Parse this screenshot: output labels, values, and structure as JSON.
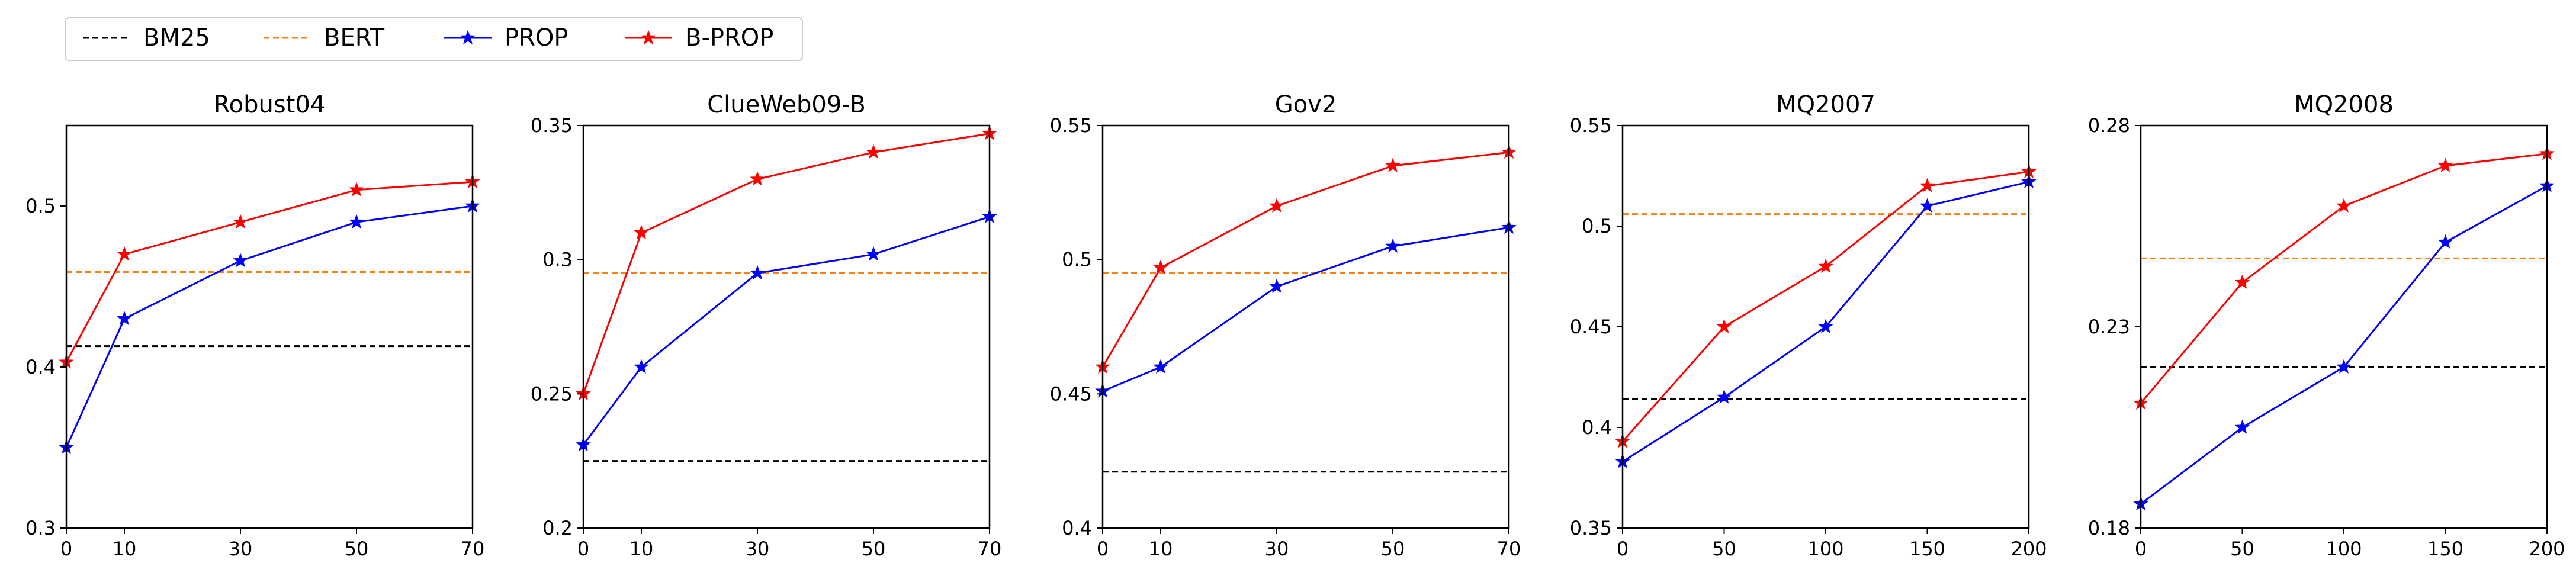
{
  "legend": {
    "placement": "top-left",
    "items": [
      {
        "label": "BM25",
        "color": "#000000",
        "style": "dashed",
        "marker": "none"
      },
      {
        "label": "BERT",
        "color": "#ff7f0e",
        "style": "dashed",
        "marker": "none"
      },
      {
        "label": "PROP",
        "color": "#0000ff",
        "style": "solid",
        "marker": "star"
      },
      {
        "label": "B-PROP",
        "color": "#ff0000",
        "style": "solid",
        "marker": "star"
      }
    ]
  },
  "chart_data": [
    {
      "type": "line",
      "title": "Robust04",
      "x": [
        0,
        10,
        30,
        50,
        70
      ],
      "xticks": [
        "0",
        "10",
        "30",
        "50",
        "70"
      ],
      "xlim": [
        0,
        70
      ],
      "ylim": [
        0.3,
        0.55
      ],
      "yticks": [
        0.3,
        0.4,
        0.5
      ],
      "ytick_labels": [
        "0.3",
        "0.4",
        "0.5"
      ],
      "baselines": [
        {
          "name": "BM25",
          "value": 0.413
        },
        {
          "name": "BERT",
          "value": 0.459
        }
      ],
      "series": [
        {
          "name": "PROP",
          "values": [
            0.35,
            0.43,
            0.466,
            0.49,
            0.5
          ]
        },
        {
          "name": "B-PROP",
          "values": [
            0.403,
            0.47,
            0.49,
            0.51,
            0.515
          ]
        }
      ]
    },
    {
      "type": "line",
      "title": "ClueWeb09-B",
      "x": [
        0,
        10,
        30,
        50,
        70
      ],
      "xticks": [
        "0",
        "10",
        "30",
        "50",
        "70"
      ],
      "xlim": [
        0,
        70
      ],
      "ylim": [
        0.2,
        0.35
      ],
      "yticks": [
        0.2,
        0.25,
        0.3,
        0.35
      ],
      "ytick_labels": [
        "0.2",
        "0.25",
        "0.3",
        "0.35"
      ],
      "baselines": [
        {
          "name": "BM25",
          "value": 0.225
        },
        {
          "name": "BERT",
          "value": 0.295
        }
      ],
      "series": [
        {
          "name": "PROP",
          "values": [
            0.231,
            0.26,
            0.295,
            0.302,
            0.316
          ]
        },
        {
          "name": "B-PROP",
          "values": [
            0.25,
            0.31,
            0.33,
            0.34,
            0.347
          ]
        }
      ]
    },
    {
      "type": "line",
      "title": "Gov2",
      "x": [
        0,
        10,
        30,
        50,
        70
      ],
      "xticks": [
        "0",
        "10",
        "30",
        "50",
        "70"
      ],
      "xlim": [
        0,
        70
      ],
      "ylim": [
        0.4,
        0.55
      ],
      "yticks": [
        0.4,
        0.45,
        0.5,
        0.55
      ],
      "ytick_labels": [
        "0.4",
        "0.45",
        "0.5",
        "0.55"
      ],
      "baselines": [
        {
          "name": "BM25",
          "value": 0.421
        },
        {
          "name": "BERT",
          "value": 0.495
        }
      ],
      "series": [
        {
          "name": "PROP",
          "values": [
            0.451,
            0.46,
            0.49,
            0.505,
            0.512
          ]
        },
        {
          "name": "B-PROP",
          "values": [
            0.46,
            0.497,
            0.52,
            0.535,
            0.54
          ]
        }
      ]
    },
    {
      "type": "line",
      "title": "MQ2007",
      "x": [
        0,
        50,
        100,
        150,
        200
      ],
      "xticks": [
        "0",
        "50",
        "100",
        "150",
        "200"
      ],
      "xlim": [
        0,
        200
      ],
      "ylim": [
        0.35,
        0.55
      ],
      "yticks": [
        0.35,
        0.4,
        0.45,
        0.5,
        0.55
      ],
      "ytick_labels": [
        "0.35",
        "0.4",
        "0.45",
        "0.5",
        "0.55"
      ],
      "baselines": [
        {
          "name": "BM25",
          "value": 0.414
        },
        {
          "name": "BERT",
          "value": 0.506
        }
      ],
      "series": [
        {
          "name": "PROP",
          "values": [
            0.383,
            0.415,
            0.45,
            0.51,
            0.522
          ]
        },
        {
          "name": "B-PROP",
          "values": [
            0.393,
            0.45,
            0.48,
            0.52,
            0.527
          ]
        }
      ]
    },
    {
      "type": "line",
      "title": "MQ2008",
      "x": [
        0,
        50,
        100,
        150,
        200
      ],
      "xticks": [
        "0",
        "50",
        "100",
        "150",
        "200"
      ],
      "xlim": [
        0,
        200
      ],
      "ylim": [
        0.18,
        0.28
      ],
      "yticks": [
        0.18,
        0.23,
        0.28
      ],
      "ytick_labels": [
        "0.18",
        "0.23",
        "0.28"
      ],
      "baselines": [
        {
          "name": "BM25",
          "value": 0.22
        },
        {
          "name": "BERT",
          "value": 0.247
        }
      ],
      "series": [
        {
          "name": "PROP",
          "values": [
            0.186,
            0.205,
            0.22,
            0.251,
            0.265
          ]
        },
        {
          "name": "B-PROP",
          "values": [
            0.211,
            0.241,
            0.26,
            0.27,
            0.273
          ]
        }
      ]
    }
  ]
}
